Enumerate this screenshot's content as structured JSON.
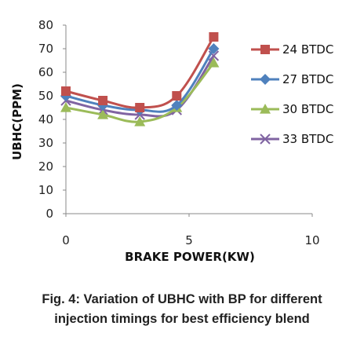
{
  "chart_data": {
    "type": "line",
    "xlabel": "BRAKE POWER(KW)",
    "ylabel": "UBHC(PPM)",
    "xlim": [
      0,
      10
    ],
    "ylim": [
      0,
      80
    ],
    "xticks": [
      "0",
      "5",
      "10"
    ],
    "yticks": [
      "0",
      "10",
      "20",
      "30",
      "40",
      "50",
      "60",
      "70",
      "80"
    ],
    "grid": false,
    "legend_position": "right",
    "x": [
      0,
      1.5,
      3,
      4.5,
      6
    ],
    "series": [
      {
        "name": "24 BTDC",
        "color": "#c0504d",
        "marker": "square",
        "values": [
          52,
          48,
          45,
          50,
          75
        ]
      },
      {
        "name": "27 BTDC",
        "color": "#4f81bd",
        "marker": "diamond",
        "values": [
          50,
          46,
          44,
          46,
          70
        ]
      },
      {
        "name": "30 BTDC",
        "color": "#9bbb59",
        "marker": "triangle",
        "values": [
          45,
          42,
          39,
          45,
          64
        ]
      },
      {
        "name": "33 BTDC",
        "color": "#8064a2",
        "marker": "x",
        "values": [
          48,
          44,
          42,
          44,
          67
        ]
      }
    ]
  },
  "caption": {
    "line1": "Fig. 4: Variation of UBHC with BP for different",
    "line2": "injection timings for best efficiency blend"
  }
}
